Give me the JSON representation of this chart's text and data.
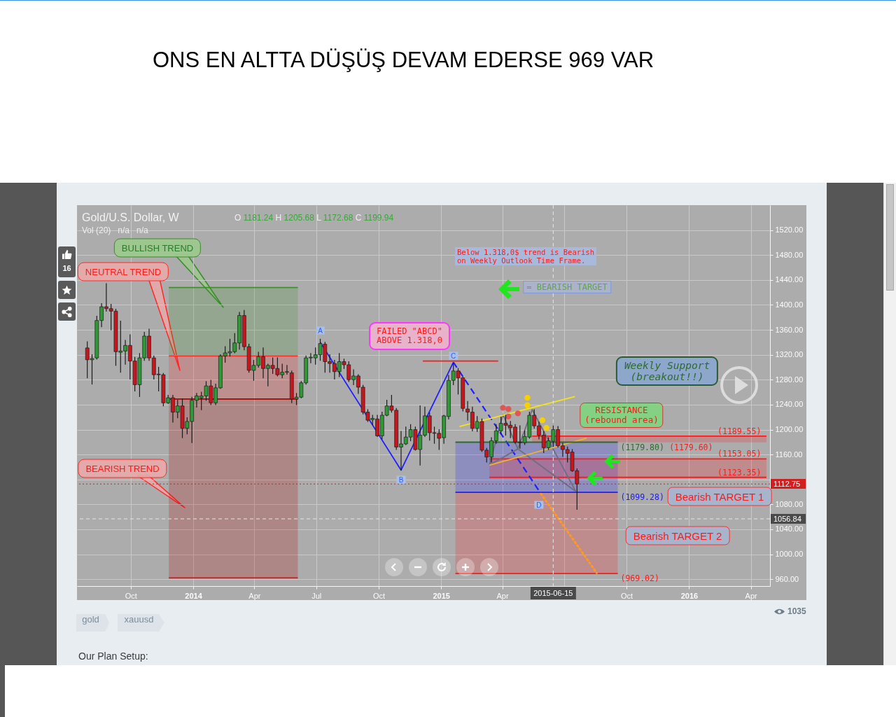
{
  "chart_data": {
    "type": "candlestick",
    "title": "ONS EN ALTTA DÜŞÜŞ DEVAM EDERSE 969 VAR",
    "subtitle": "Gold/U.S. Dollar, W",
    "x": [
      "2013-07-29",
      "2013-08-05",
      "2013-08-12",
      "2013-08-19",
      "2013-08-26",
      "2013-09-02",
      "2013-09-09",
      "2013-09-16",
      "2013-09-23",
      "2013-09-30",
      "2013-10-07",
      "2013-10-14",
      "2013-10-21",
      "2013-10-28",
      "2013-11-04",
      "2013-11-11",
      "2013-11-18",
      "2013-11-25",
      "2013-12-02",
      "2013-12-09",
      "2013-12-16",
      "2013-12-23",
      "2013-12-30",
      "2014-01-06",
      "2014-01-13",
      "2014-01-20",
      "2014-01-27",
      "2014-02-03",
      "2014-02-10",
      "2014-02-17",
      "2014-02-24",
      "2014-03-03",
      "2014-03-10",
      "2014-03-17",
      "2014-03-24",
      "2014-03-31",
      "2014-04-07",
      "2014-04-14",
      "2014-04-21",
      "2014-04-28",
      "2014-05-05",
      "2014-05-12",
      "2014-05-19",
      "2014-05-26",
      "2014-06-02",
      "2014-06-09",
      "2014-06-16",
      "2014-06-23",
      "2014-06-30",
      "2014-07-07",
      "2014-07-14",
      "2014-07-21",
      "2014-07-28",
      "2014-08-04",
      "2014-08-11",
      "2014-08-18",
      "2014-08-25",
      "2014-09-01",
      "2014-09-08",
      "2014-09-15",
      "2014-09-22",
      "2014-09-29",
      "2014-10-06",
      "2014-10-13",
      "2014-10-20",
      "2014-10-27",
      "2014-11-03",
      "2014-11-10",
      "2014-11-17",
      "2014-11-24",
      "2014-12-01",
      "2014-12-08",
      "2014-12-15",
      "2014-12-22",
      "2014-12-29",
      "2015-01-05",
      "2015-01-12",
      "2015-01-19",
      "2015-01-26",
      "2015-02-02",
      "2015-02-09",
      "2015-02-16",
      "2015-02-23",
      "2015-03-02",
      "2015-03-09",
      "2015-03-16",
      "2015-03-23",
      "2015-03-30",
      "2015-04-06",
      "2015-04-13",
      "2015-04-20",
      "2015-04-27",
      "2015-05-04",
      "2015-05-11",
      "2015-05-18",
      "2015-05-25",
      "2015-06-01",
      "2015-06-08",
      "2015-06-15",
      "2015-06-22",
      "2015-06-29",
      "2015-07-06",
      "2015-07-13",
      "2015-07-20"
    ],
    "ohlc": [
      [
        1331,
        1341,
        1283,
        1312
      ],
      [
        1312,
        1320,
        1273,
        1314
      ],
      [
        1315,
        1382,
        1313,
        1375
      ],
      [
        1375,
        1402,
        1365,
        1397
      ],
      [
        1397,
        1434,
        1390,
        1394
      ],
      [
        1394,
        1401,
        1360,
        1390
      ],
      [
        1390,
        1393,
        1303,
        1325
      ],
      [
        1324,
        1374,
        1292,
        1326
      ],
      [
        1326,
        1343,
        1305,
        1335
      ],
      [
        1335,
        1352,
        1281,
        1310
      ],
      [
        1310,
        1316,
        1262,
        1272
      ],
      [
        1272,
        1322,
        1253,
        1315
      ],
      [
        1315,
        1356,
        1311,
        1350
      ],
      [
        1350,
        1361,
        1311,
        1315
      ],
      [
        1315,
        1318,
        1281,
        1288
      ],
      [
        1289,
        1300,
        1262,
        1288
      ],
      [
        1288,
        1290,
        1238,
        1243
      ],
      [
        1243,
        1255,
        1242,
        1251
      ],
      [
        1251,
        1255,
        1212,
        1228
      ],
      [
        1228,
        1247,
        1219,
        1238
      ],
      [
        1238,
        1249,
        1187,
        1202
      ],
      [
        1202,
        1219,
        1193,
        1213
      ],
      [
        1213,
        1252,
        1179,
        1247
      ],
      [
        1247,
        1258,
        1236,
        1254
      ],
      [
        1251,
        1260,
        1232,
        1254
      ],
      [
        1254,
        1277,
        1247,
        1270
      ],
      [
        1270,
        1279,
        1240,
        1243
      ],
      [
        1243,
        1273,
        1240,
        1267
      ],
      [
        1267,
        1320,
        1266,
        1318
      ],
      [
        1318,
        1333,
        1308,
        1323
      ],
      [
        1323,
        1345,
        1318,
        1325
      ],
      [
        1325,
        1354,
        1323,
        1339
      ],
      [
        1339,
        1388,
        1329,
        1383
      ],
      [
        1383,
        1391,
        1328,
        1333
      ],
      [
        1333,
        1337,
        1292,
        1295
      ],
      [
        1295,
        1311,
        1279,
        1303
      ],
      [
        1303,
        1324,
        1300,
        1317
      ],
      [
        1317,
        1331,
        1283,
        1298
      ],
      [
        1298,
        1305,
        1270,
        1303
      ],
      [
        1303,
        1315,
        1290,
        1298
      ],
      [
        1298,
        1315,
        1286,
        1288
      ],
      [
        1288,
        1305,
        1283,
        1292
      ],
      [
        1292,
        1303,
        1289,
        1293
      ],
      [
        1291,
        1294,
        1243,
        1249
      ],
      [
        1249,
        1258,
        1240,
        1252
      ],
      [
        1252,
        1277,
        1251,
        1275
      ],
      [
        1275,
        1318,
        1273,
        1315
      ],
      [
        1315,
        1322,
        1307,
        1316
      ],
      [
        1315,
        1331,
        1305,
        1320
      ],
      [
        1320,
        1345,
        1311,
        1338
      ],
      [
        1337,
        1340,
        1292,
        1309
      ],
      [
        1309,
        1320,
        1292,
        1306
      ],
      [
        1306,
        1311,
        1281,
        1293
      ],
      [
        1293,
        1322,
        1285,
        1309
      ],
      [
        1309,
        1313,
        1298,
        1304
      ],
      [
        1304,
        1309,
        1277,
        1280
      ],
      [
        1280,
        1296,
        1272,
        1286
      ],
      [
        1286,
        1288,
        1258,
        1268
      ],
      [
        1268,
        1271,
        1225,
        1228
      ],
      [
        1228,
        1232,
        1213,
        1215
      ],
      [
        1216,
        1223,
        1208,
        1218
      ],
      [
        1217,
        1223,
        1189,
        1190
      ],
      [
        1190,
        1228,
        1185,
        1223
      ],
      [
        1223,
        1247,
        1222,
        1238
      ],
      [
        1238,
        1255,
        1228,
        1231
      ],
      [
        1231,
        1234,
        1168,
        1172
      ],
      [
        1172,
        1197,
        1135,
        1177
      ],
      [
        1177,
        1204,
        1176,
        1188
      ],
      [
        1188,
        1208,
        1182,
        1200
      ],
      [
        1200,
        1204,
        1167,
        1168
      ],
      [
        1168,
        1238,
        1143,
        1191
      ],
      [
        1191,
        1236,
        1189,
        1222
      ],
      [
        1222,
        1227,
        1183,
        1195
      ],
      [
        1195,
        1204,
        1178,
        1194
      ],
      [
        1194,
        1200,
        1168,
        1186
      ],
      [
        1187,
        1223,
        1178,
        1222
      ],
      [
        1221,
        1287,
        1217,
        1279
      ],
      [
        1279,
        1306,
        1272,
        1294
      ],
      [
        1294,
        1298,
        1257,
        1283
      ],
      [
        1283,
        1285,
        1230,
        1234
      ],
      [
        1233,
        1245,
        1215,
        1228
      ],
      [
        1228,
        1236,
        1198,
        1202
      ],
      [
        1202,
        1221,
        1197,
        1213
      ],
      [
        1213,
        1217,
        1165,
        1167
      ],
      [
        1167,
        1170,
        1148,
        1156
      ],
      [
        1156,
        1187,
        1148,
        1182
      ],
      [
        1182,
        1208,
        1178,
        1198
      ],
      [
        1198,
        1220,
        1193,
        1210
      ],
      [
        1210,
        1223,
        1191,
        1207
      ],
      [
        1207,
        1213,
        1187,
        1203
      ],
      [
        1204,
        1208,
        1178,
        1180
      ],
      [
        1180,
        1206,
        1170,
        1179
      ],
      [
        1179,
        1198,
        1176,
        1189
      ],
      [
        1188,
        1228,
        1186,
        1223
      ],
      [
        1223,
        1232,
        1202,
        1206
      ],
      [
        1206,
        1212,
        1185,
        1191
      ],
      [
        1191,
        1197,
        1163,
        1171
      ],
      [
        1171,
        1187,
        1168,
        1182
      ],
      [
        1181.24,
        1205.68,
        1172.68,
        1199.94
      ],
      [
        1200,
        1205,
        1172,
        1174
      ],
      [
        1174,
        1178,
        1157,
        1168
      ],
      [
        1168,
        1172,
        1148,
        1162
      ],
      [
        1164,
        1168,
        1133,
        1134
      ],
      [
        1134,
        1137,
        1072,
        1112.75
      ]
    ],
    "colors": [
      "#c8161d",
      "#2f9a35",
      "#2f9a35",
      "#2f9a35",
      "#c8161d",
      "#c8161d",
      "#c8161d",
      "#2f9a35",
      "#2f9a35",
      "#c8161d",
      "#c8161d",
      "#2f9a35",
      "#2f9a35",
      "#c8161d",
      "#c8161d",
      "#c8161d",
      "#c8161d",
      "#2f9a35",
      "#c8161d",
      "#2f9a35",
      "#c8161d",
      "#2f9a35",
      "#2f9a35",
      "#2f9a35",
      "#2f9a35",
      "#2f9a35",
      "#c8161d",
      "#2f9a35",
      "#2f9a35",
      "#2f9a35",
      "#2f9a35",
      "#2f9a35",
      "#2f9a35",
      "#c8161d",
      "#c8161d",
      "#2f9a35",
      "#2f9a35",
      "#c8161d",
      "#2f9a35",
      "#c8161d",
      "#c8161d",
      "#2f9a35",
      "#2f9a35",
      "#c8161d",
      "#2f9a35",
      "#2f9a35",
      "#2f9a35",
      "#2f9a35",
      "#2f9a35",
      "#2f9a35",
      "#c8161d",
      "#c8161d",
      "#c8161d",
      "#2f9a35",
      "#c8161d",
      "#c8161d",
      "#2f9a35",
      "#c8161d",
      "#c8161d",
      "#c8161d",
      "#2f9a35",
      "#c8161d",
      "#2f9a35",
      "#2f9a35",
      "#c8161d",
      "#c8161d",
      "#2f9a35",
      "#2f9a35",
      "#2f9a35",
      "#c8161d",
      "#2f9a35",
      "#2f9a35",
      "#c8161d",
      "#c8161d",
      "#c8161d",
      "#2f9a35",
      "#2f9a35",
      "#2f9a35",
      "#c8161d",
      "#c8161d",
      "#c8161d",
      "#c8161d",
      "#2f9a35",
      "#c8161d",
      "#c8161d",
      "#2f9a35",
      "#2f9a35",
      "#2f9a35",
      "#c8161d",
      "#c8161d",
      "#c8161d",
      "#c8161d",
      "#2f9a35",
      "#2f9a35",
      "#c8161d",
      "#c8161d",
      "#c8161d",
      "#2f9a35",
      "#2f9a35",
      "#c8161d",
      "#c8161d",
      "#c8161d",
      "#c8161d",
      "#c8161d"
    ],
    "series": [
      {
        "type": "line",
        "color": "#3f8f2f",
        "x": [
          "2013-11-26",
          "2014-06-04"
        ],
        "values": [
          1428,
          1428
        ],
        "upper": [
          1428,
          1428
        ],
        "lower": [
          1318,
          1318
        ]
      },
      {
        "type": "line",
        "color": "#ff2a2a",
        "x": [
          "2013-11-26",
          "2014-06-04"
        ],
        "values": [
          1318,
          1318
        ],
        "upper": [
          1318,
          1318
        ],
        "lower": [
          1249,
          1249
        ]
      },
      {
        "type": "line",
        "color": "#b00000",
        "x": [
          "2013-11-26",
          "2014-06-04"
        ],
        "values": [
          1249,
          1249
        ],
        "upper": [
          1249,
          1249
        ],
        "lower": [
          962,
          962
        ]
      },
      {
        "type": "line",
        "color": "#1f1fff",
        "x": [
          "2015-01-22",
          "2015-09-18"
        ],
        "values": [
          1099.28,
          1099.28
        ],
        "upper": [
          1179.8,
          1179.8
        ],
        "lower": [
          1099.28,
          1099.28
        ]
      },
      {
        "type": "line",
        "color": "#ff1a1a",
        "x": [
          "2015-01-22",
          "2015-09-18"
        ],
        "values": [
          969.02,
          969.02
        ],
        "upper": [
          1099.28,
          1099.28
        ],
        "lower": [
          969.02,
          969.02
        ]
      },
      {
        "type": "line",
        "color": "#ff1a1a",
        "x": [
          "2015-05-15",
          "2016-04-24"
        ],
        "values": [
          1189.55,
          1189.55
        ],
        "upper": [
          1189.55,
          1189.55
        ],
        "lower": [
          1179.6,
          1179.6
        ]
      },
      {
        "type": "line",
        "color": "#ff1a1a",
        "x": [
          "2015-03-13",
          "2016-04-24"
        ],
        "values": [
          1153.05,
          1153.05
        ],
        "upper": [
          1153.05,
          1153.05
        ],
        "lower": [
          1123.35,
          1123.35
        ]
      },
      {
        "type": "line",
        "color": "#ff1a1a",
        "x": [
          "2015-03-13",
          "2016-04-24"
        ],
        "values": [
          1123.35,
          1123.35
        ]
      },
      {
        "type": "line",
        "color": "#e01010",
        "x": [
          "2013-11-26",
          "2014-06-04"
        ],
        "values": [
          962,
          962
        ]
      },
      {
        "type": "line",
        "color": "#1f1fff",
        "x": [
          "2014-07-07",
          "2014-11-03",
          "2015-01-19"
        ],
        "values": [
          1340,
          1135,
          1308
        ]
      },
      {
        "type": "line",
        "color": "#1f1fff",
        "line_style": "dashed",
        "x": [
          "2015-01-19",
          "2015-05-28"
        ],
        "values": [
          1308,
          1097
        ]
      },
      {
        "type": "line",
        "color": "#ff9a1f",
        "line_style": "dotted",
        "x": [
          "2015-05-28",
          "2015-08-18"
        ],
        "values": [
          1097,
          970
        ]
      },
      {
        "type": "line",
        "color": "#6e6e7e",
        "x": [
          "2015-03-13",
          "2015-04-02",
          "2015-04-24"
        ],
        "values": [
          1143,
          1224,
          1169
        ]
      },
      {
        "type": "line",
        "color": "#6e6e7e",
        "x": [
          "2015-03-13",
          "2015-04-24"
        ],
        "values": [
          1143,
          1169
        ]
      },
      {
        "type": "line",
        "color": "#6e6e7e",
        "x": [
          "2015-04-24",
          "2015-05-15",
          "2015-07-18"
        ],
        "values": [
          1169,
          1232,
          1101
        ]
      },
      {
        "type": "line",
        "color": "#6e6e7e",
        "x": [
          "2015-04-24",
          "2015-07-18"
        ],
        "values": [
          1169,
          1101
        ]
      },
      {
        "type": "line",
        "color": "#f2e31e",
        "x": [
          "2015-01-28",
          "2015-07-17"
        ],
        "values": [
          1205,
          1253
        ]
      },
      {
        "type": "line",
        "color": "#f0b429",
        "x": [
          "2015-03-13",
          "2015-08-03"
        ],
        "values": [
          1143,
          1186
        ]
      },
      {
        "type": "line",
        "color": "#ff1a1a",
        "x": [
          "2014-12-05",
          "2015-03-26"
        ],
        "values": [
          1310,
          1310
        ]
      },
      {
        "type": "line",
        "color": "#2e6b2e",
        "x": [
          "2015-01-22",
          "2015-09-18"
        ],
        "values": [
          1179.8,
          1179.8
        ]
      },
      {
        "type": "scatter",
        "color": "#e25555",
        "marker": "circle",
        "x": [
          "2015-04-02",
          "2015-04-10",
          "2015-04-10",
          "2015-04-24"
        ],
        "values": [
          1235,
          1233,
          1221,
          1226
        ]
      },
      {
        "type": "scatter",
        "color": "#f7d000",
        "marker": "circle",
        "x": [
          "2015-05-08",
          "2015-05-08",
          "2015-05-30",
          "2015-06-05"
        ],
        "values": [
          1251,
          1239,
          1215,
          1203
        ]
      }
    ],
    "ref_lines": [
      {
        "axis": "y",
        "value": 1112.75,
        "label": "1112.75",
        "color": "#d11f1f",
        "line_style": "dotted"
      },
      {
        "axis": "y",
        "value": 1056.84,
        "label": "1056.84",
        "color": "#e6e6e6",
        "line_style": "dashed"
      },
      {
        "axis": "x",
        "value": "2015-06-15",
        "label": "2015-06-15",
        "color": "#e6e6e6",
        "line_style": "dashed"
      }
    ],
    "annotations": [
      "O 1181.24 H 1205.68 L 1172.68 C 1199.94",
      "Vol (20)   n/a   n/a",
      "16",
      "gold",
      "xauusd",
      "1035",
      "Our Plan Setup:",
      "BULLISH TREND",
      "NEUTRAL TREND",
      "BEARISH TREND",
      "Below 1.318,0$ trend is Bearish\non Weekly Outlook Time Frame.",
      "= BEARISH TARGET",
      "FAILED \"ABCD\"\nABOVE 1.318,0",
      "RESISTANCE\n(rebound area)",
      "Weekly Support\n(breakout!!)",
      "Bearish TARGET 1",
      "Bearish TARGET 2",
      {
        "text": "A",
        "x": "2014-07-07",
        "y": 1359
      },
      {
        "text": "B",
        "x": "2014-11-03",
        "y": 1120
      },
      {
        "text": "C",
        "x": "2015-01-19",
        "y": 1319
      },
      {
        "text": "D",
        "x": "2015-05-25",
        "y": 1079
      },
      {
        "text": "(1189.55)",
        "x": "2016-03-15",
        "y": 1189.55
      },
      {
        "text": "(1179.60)",
        "x": "2016-01-04",
        "y": 1179.6
      },
      {
        "text": "(1153.05)",
        "x": "2016-03-15",
        "y": 1153.05
      },
      {
        "text": "(1123.35)",
        "x": "2016-03-15",
        "y": 1123.35
      },
      {
        "text": "(1179.80)",
        "x": "2015-09-18",
        "y": 1179.8
      },
      {
        "text": "(1099.28)",
        "x": "2015-09-18",
        "y": 1099.28
      },
      {
        "text": "(969.02)",
        "x": "2015-09-18",
        "y": 969.02
      }
    ],
    "xlim": [
      "2013-07-19",
      "2016-04-24"
    ],
    "ylim": [
      949,
      1560
    ],
    "xticks": [
      {
        "value": "2013-10-01",
        "label": "Oct"
      },
      {
        "value": "2014-01-01",
        "label": "2014"
      },
      {
        "value": "2014-04-01",
        "label": "Apr"
      },
      {
        "value": "2014-07-01",
        "label": "Jul"
      },
      {
        "value": "2014-10-01",
        "label": "Oct"
      },
      {
        "value": "2015-01-01",
        "label": "2015"
      },
      {
        "value": "2015-04-01",
        "label": "Apr"
      },
      {
        "value": "2015-07-01",
        "label": null
      },
      {
        "value": "2015-10-01",
        "label": "Oct"
      },
      {
        "value": "2016-01-01",
        "label": "2016"
      },
      {
        "value": "2016-04-01",
        "label": "Apr"
      }
    ],
    "yticks": [
      {
        "value": 960,
        "label": "960.00"
      },
      {
        "value": 1000,
        "label": "1000.00"
      },
      {
        "value": 1040,
        "label": "1040.00"
      },
      {
        "value": 1080,
        "label": "1080.00"
      },
      {
        "value": 1120,
        "label": null
      },
      {
        "value": 1160,
        "label": "1160.00"
      },
      {
        "value": 1200,
        "label": "1200.00"
      },
      {
        "value": 1240,
        "label": "1240.00"
      },
      {
        "value": 1280,
        "label": "1280.00"
      },
      {
        "value": 1320,
        "label": "1320.00"
      },
      {
        "value": 1360,
        "label": "1360.00"
      },
      {
        "value": 1400,
        "label": "1400.00"
      },
      {
        "value": 1440,
        "label": "1440.00"
      },
      {
        "value": 1480,
        "label": "1480.00"
      },
      {
        "value": 1520,
        "label": "1520.00"
      }
    ],
    "grid": true
  }
}
